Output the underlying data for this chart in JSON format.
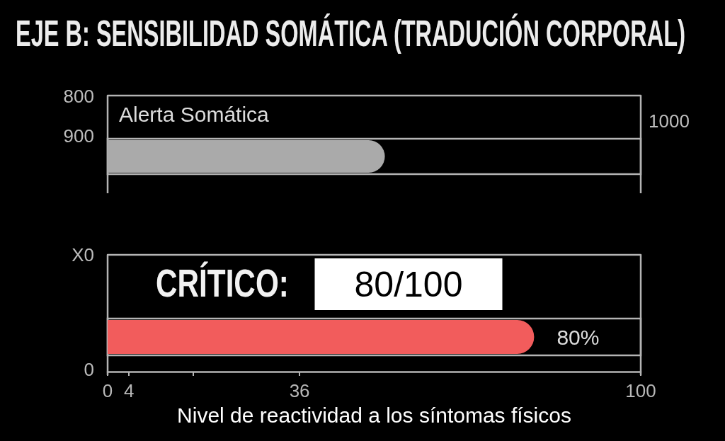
{
  "chart_data": [
    {
      "type": "bar",
      "title": "EJE B: SENSIBILIDAD SOMÁTICA (TRADUCIÓN CORPORAL)",
      "orientation": "horizontal",
      "categories": [
        null
      ],
      "values": [
        52
      ],
      "color": "#aaaaaa",
      "xlim": [
        0,
        100
      ],
      "tick_labels": false,
      "annotations": [
        "Alerta Somática",
        "800",
        "900",
        "1000"
      ]
    },
    {
      "type": "bar",
      "orientation": "horizontal",
      "categories": [
        null
      ],
      "values": [
        80
      ],
      "color": "#f25c5c",
      "value_labels": [
        "80%"
      ],
      "xlim": [
        0,
        100
      ],
      "xticks": [
        0,
        4,
        {
          "value": 16,
          "label": null
        },
        36,
        100
      ],
      "tick_labels": "x",
      "xlabel": "Nivel de reactividad a los síntomas físicos",
      "annotations": [
        "CRÍTICO:",
        "80/100",
        "X0",
        "0"
      ]
    }
  ]
}
